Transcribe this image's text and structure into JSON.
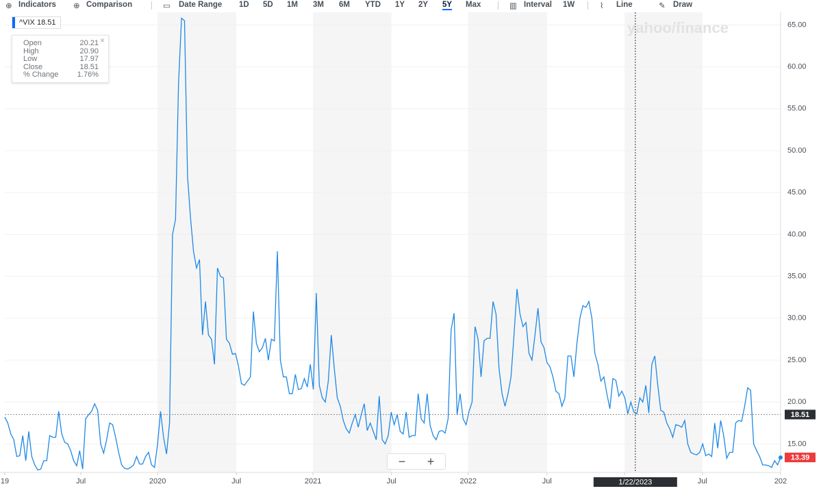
{
  "toolbar": [
    {
      "label": "Indicators"
    },
    {
      "label": "Comparison"
    },
    {
      "label": "Date Range"
    },
    {
      "label": "1D"
    },
    {
      "label": "5D"
    },
    {
      "label": "1M"
    },
    {
      "label": "3M"
    },
    {
      "label": "6M"
    },
    {
      "label": "YTD"
    },
    {
      "label": "1Y"
    },
    {
      "label": "2Y"
    },
    {
      "label": "5Y",
      "active": true
    },
    {
      "label": "Max"
    },
    {
      "label": "Interval"
    },
    {
      "label": "1W"
    },
    {
      "label": "Line"
    },
    {
      "label": "Draw"
    }
  ],
  "chip": {
    "symbol": "^VIX",
    "value": "18.51"
  },
  "tooltip": {
    "rows": [
      {
        "label": "Open",
        "value": "20.21"
      },
      {
        "label": "High",
        "value": "20.90"
      },
      {
        "label": "Low",
        "value": "17.97"
      },
      {
        "label": "Close",
        "value": "18.51"
      },
      {
        "label": "% Change",
        "value": "1.76%"
      }
    ]
  },
  "watermark": "yahoo/finance",
  "zoom": {
    "out": "−",
    "in": "+"
  },
  "chart_data": {
    "type": "line",
    "color": "#1e88e5",
    "values": [
      18.2,
      17.5,
      16.2,
      15.5,
      13.5,
      13.6,
      16.0,
      13.0,
      16.5,
      13.5,
      12.5,
      11.9,
      12.0,
      13.0,
      13.0,
      16.0,
      15.8,
      15.8,
      18.9,
      16.2,
      15.2,
      15.0,
      14.2,
      13.0,
      12.4,
      14.2,
      12.0,
      18.0,
      18.5,
      18.9,
      19.8,
      19.0,
      15.0,
      13.9,
      15.5,
      17.5,
      17.3,
      15.8,
      14.0,
      12.5,
      12.1,
      12.0,
      12.2,
      12.5,
      13.5,
      12.6,
      12.6,
      13.5,
      14.0,
      12.5,
      12.2,
      15.0,
      18.9,
      15.8,
      13.8,
      17.5,
      40.0,
      41.8,
      58.0,
      65.8,
      65.5,
      47.0,
      42.0,
      38.0,
      36.0,
      37.0,
      28.0,
      32.0,
      28.0,
      27.5,
      24.5,
      36.0,
      35.0,
      34.8,
      27.5,
      27.0,
      25.7,
      25.8,
      24.3,
      22.2,
      22.0,
      22.5,
      23.0,
      30.8,
      27.0,
      26.0,
      26.5,
      27.6,
      25.0,
      27.5,
      27.3,
      38.0,
      25.0,
      23.0,
      23.0,
      21.0,
      21.0,
      23.3,
      21.5,
      21.6,
      22.8,
      21.8,
      24.5,
      21.5,
      33.0,
      22.0,
      20.5,
      20.0,
      22.5,
      28.0,
      24.0,
      20.5,
      19.5,
      17.8,
      16.8,
      16.3,
      17.5,
      18.5,
      17.0,
      18.5,
      19.8,
      16.6,
      17.5,
      16.5,
      15.5,
      20.7,
      15.5,
      15.0,
      16.0,
      18.8,
      17.3,
      18.5,
      16.5,
      16.2,
      18.8,
      15.8,
      16.0,
      16.0,
      21.0,
      18.0,
      17.5,
      21.0,
      17.2,
      16.0,
      15.5,
      16.5,
      16.6,
      16.3,
      18.0,
      28.6,
      30.6,
      18.5,
      21.0,
      18.0,
      17.3,
      18.9,
      20.0,
      29.0,
      27.5,
      23.0,
      27.3,
      27.6,
      27.6,
      32.0,
      30.5,
      24.0,
      21.0,
      19.5,
      21.0,
      23.0,
      28.0,
      33.5,
      30.5,
      29.0,
      29.5,
      25.8,
      25.0,
      28.0,
      31.2,
      27.2,
      26.5,
      24.7,
      24.2,
      23.0,
      21.3,
      21.0,
      19.5,
      20.5,
      25.5,
      25.5,
      23.0,
      27.0,
      30.0,
      31.5,
      31.3,
      32.0,
      30.0,
      25.8,
      24.5,
      22.5,
      23.0,
      21.0,
      19.2,
      22.8,
      22.6,
      20.7,
      21.3,
      20.5,
      18.6,
      20.0,
      18.8,
      18.6,
      20.5,
      20.0,
      22.0,
      18.7,
      24.5,
      25.5,
      22.0,
      19.0,
      18.8,
      17.5,
      16.8,
      15.8,
      17.3,
      17.2,
      17.0,
      17.8,
      15.0,
      14.0,
      13.8,
      13.7,
      14.0,
      15.0,
      13.6,
      13.8,
      13.5,
      17.5,
      14.5,
      17.8,
      16.0,
      13.3,
      14.0,
      14.0,
      17.5,
      17.8,
      17.7,
      19.5,
      21.7,
      21.4,
      15.0,
      14.2,
      13.5,
      12.5,
      12.5,
      12.4,
      12.2,
      13.0,
      12.5,
      13.4
    ],
    "xlim": [
      0,
      259
    ],
    "xticks": [
      {
        "value": 0,
        "label": "19"
      },
      {
        "value": 25.4,
        "label": "Jul"
      },
      {
        "value": 51,
        "label": "2020"
      },
      {
        "value": 77.3,
        "label": "Jul"
      },
      {
        "value": 102.9,
        "label": "2021"
      },
      {
        "value": 129.1,
        "label": "Jul"
      },
      {
        "value": 154.7,
        "label": "2022"
      },
      {
        "value": 181,
        "label": "Jul"
      },
      {
        "value": 206.9,
        "label": "2023"
      },
      {
        "value": 232.9,
        "label": "Jul"
      },
      {
        "value": 259,
        "label": "202"
      }
    ],
    "ylim": [
      11.6,
      66.5
    ],
    "yticks": [
      {
        "value": 15,
        "label": "15.00"
      },
      {
        "value": 20,
        "label": "20.00"
      },
      {
        "value": 25,
        "label": "25.00"
      },
      {
        "value": 30,
        "label": "30.00"
      },
      {
        "value": 35,
        "label": "35.00"
      },
      {
        "value": 40,
        "label": "40.00"
      },
      {
        "value": 45,
        "label": "45.00"
      },
      {
        "value": 50,
        "label": "50.00"
      },
      {
        "value": 55,
        "label": "55.00"
      },
      {
        "value": 60,
        "label": "60.00"
      },
      {
        "value": 65,
        "label": "65.00"
      }
    ],
    "grid": true,
    "reference_line": {
      "value": 18.51,
      "label": "18.51"
    },
    "last_price": {
      "value": 13.39,
      "label": "13.39"
    },
    "crosshair": {
      "x": 210.5,
      "label": "1/22/2023"
    }
  }
}
